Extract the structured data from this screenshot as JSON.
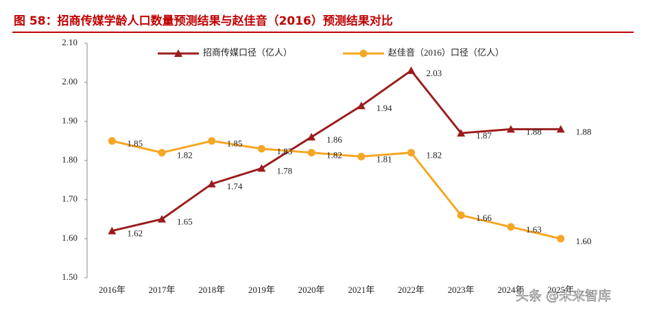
{
  "chart_data": {
    "type": "line",
    "title": "图 58：招商传媒学龄人口数量预测结果与赵佳音（2016）预测结果对比",
    "categories": [
      "2016年",
      "2017年",
      "2018年",
      "2019年",
      "2020年",
      "2021年",
      "2022年",
      "2023年",
      "2024年",
      "2025年"
    ],
    "series": [
      {
        "name": "招商传媒口径（亿人）",
        "color": "#9b1c1c",
        "marker": "triangle",
        "values": [
          1.62,
          1.65,
          1.74,
          1.78,
          1.86,
          1.94,
          2.03,
          1.87,
          1.88,
          1.88
        ],
        "value_labels": [
          "1.62",
          "1.65",
          "1.74",
          "1.78",
          "1.86",
          "1.94",
          "2.03",
          "1.87",
          "1.88",
          "1.88"
        ]
      },
      {
        "name": "赵佳音（2016）口径（亿人）",
        "color": "#f5a623",
        "marker": "circle",
        "values": [
          1.85,
          1.82,
          1.85,
          1.83,
          1.82,
          1.81,
          1.82,
          1.66,
          1.63,
          1.6
        ],
        "value_labels": [
          "1.85",
          "1.82",
          "1.85",
          "1.83",
          "1.82",
          "1.81",
          "1.82",
          "1.66",
          "1.63",
          "1.60"
        ]
      }
    ],
    "ylim": [
      1.5,
      2.1
    ],
    "yticks": [
      {
        "value": 1.5,
        "label": "1.50"
      },
      {
        "value": 1.6,
        "label": "1.60"
      },
      {
        "value": 1.7,
        "label": "1.70"
      },
      {
        "value": 1.8,
        "label": "1.80"
      },
      {
        "value": 1.9,
        "label": "1.90"
      },
      {
        "value": 2.0,
        "label": "2.00"
      },
      {
        "value": 2.1,
        "label": "2.10"
      }
    ],
    "grid": false,
    "legend": "top",
    "watermark": "头条 @未来智库"
  }
}
